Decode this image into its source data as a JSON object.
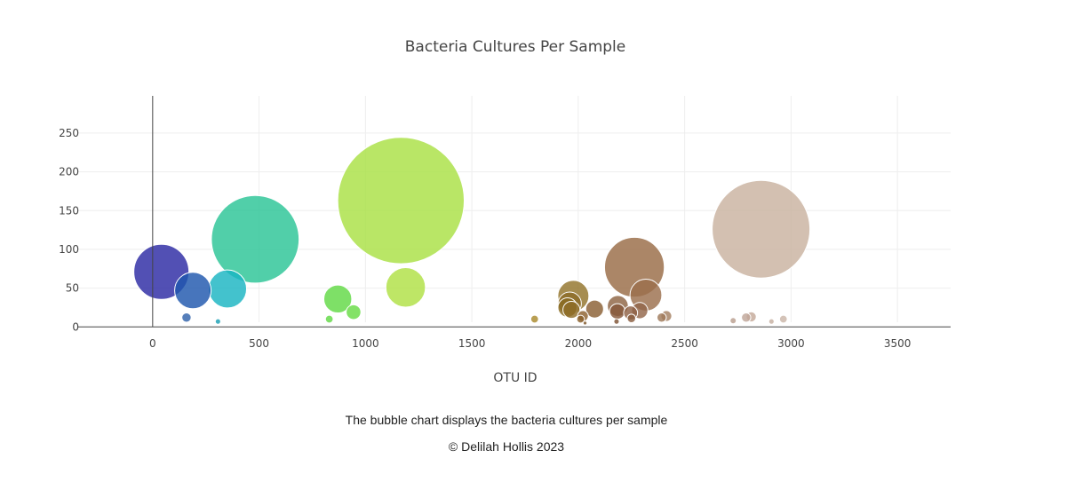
{
  "caption": "The bubble chart displays the bacteria cultures per sample",
  "footer": "© Delilah Hollis 2023",
  "chart_data": {
    "type": "scatter",
    "title": "Bacteria Cultures Per Sample",
    "xlabel": "OTU ID",
    "ylabel": "",
    "xlim": [
      -350,
      3750
    ],
    "ylim": [
      -10,
      298
    ],
    "xticks": [
      0,
      500,
      1000,
      1500,
      2000,
      2500,
      3000,
      3500
    ],
    "yticks": [
      0,
      50,
      100,
      150,
      200,
      250
    ],
    "grid": true,
    "legend": "none",
    "marker_size_encodes": "y value",
    "colorscale": "Earth (by OTU ID)",
    "points": [
      {
        "x": 41,
        "y": 71,
        "color": "#2c2aa3"
      },
      {
        "x": 189,
        "y": 47,
        "color": "#1f57ad"
      },
      {
        "x": 352,
        "y": 49,
        "color": "#1ab5c2"
      },
      {
        "x": 482,
        "y": 113,
        "color": "#2bc596"
      },
      {
        "x": 159,
        "y": 12,
        "color": "#3163ab"
      },
      {
        "x": 307,
        "y": 7,
        "color": "#1aa0b4"
      },
      {
        "x": 870,
        "y": 36,
        "color": "#62d945"
      },
      {
        "x": 944,
        "y": 19,
        "color": "#68dc45"
      },
      {
        "x": 830,
        "y": 10,
        "color": "#62d945"
      },
      {
        "x": 1167,
        "y": 163,
        "color": "#a9e044"
      },
      {
        "x": 1189,
        "y": 51,
        "color": "#b0e044"
      },
      {
        "x": 1795,
        "y": 10,
        "color": "#aa8a2d"
      },
      {
        "x": 1977,
        "y": 40,
        "color": "#93742b"
      },
      {
        "x": 1960,
        "y": 30,
        "color": "#8c6d29"
      },
      {
        "x": 1950,
        "y": 25,
        "color": "#8a6b22"
      },
      {
        "x": 1968,
        "y": 22,
        "color": "#8f6e2a"
      },
      {
        "x": 2011,
        "y": 10,
        "color": "#8a5f2a"
      },
      {
        "x": 2022,
        "y": 14,
        "color": "#8e6230"
      },
      {
        "x": 2032,
        "y": 5,
        "color": "#7e5629"
      },
      {
        "x": 2077,
        "y": 23,
        "color": "#8a5f33"
      },
      {
        "x": 2186,
        "y": 27,
        "color": "#8d6443"
      },
      {
        "x": 2184,
        "y": 20,
        "color": "#86583a"
      },
      {
        "x": 2180,
        "y": 7,
        "color": "#7e5233"
      },
      {
        "x": 2264,
        "y": 77,
        "color": "#996b45"
      },
      {
        "x": 2318,
        "y": 41,
        "color": "#9b6f4d"
      },
      {
        "x": 2289,
        "y": 21,
        "color": "#93664a"
      },
      {
        "x": 2246,
        "y": 18,
        "color": "#8f6245"
      },
      {
        "x": 2250,
        "y": 11,
        "color": "#8a5d3f"
      },
      {
        "x": 2392,
        "y": 12,
        "color": "#a07a5a"
      },
      {
        "x": 2414,
        "y": 14,
        "color": "#a58062"
      },
      {
        "x": 2859,
        "y": 126,
        "color": "#c9b2a0"
      },
      {
        "x": 2813,
        "y": 13,
        "color": "#c4a99a"
      },
      {
        "x": 2789,
        "y": 12,
        "color": "#c0a698"
      },
      {
        "x": 2728,
        "y": 8,
        "color": "#b99f8f"
      },
      {
        "x": 2908,
        "y": 7,
        "color": "#c6b0a1"
      },
      {
        "x": 2964,
        "y": 10,
        "color": "#cbb6a8"
      }
    ]
  }
}
